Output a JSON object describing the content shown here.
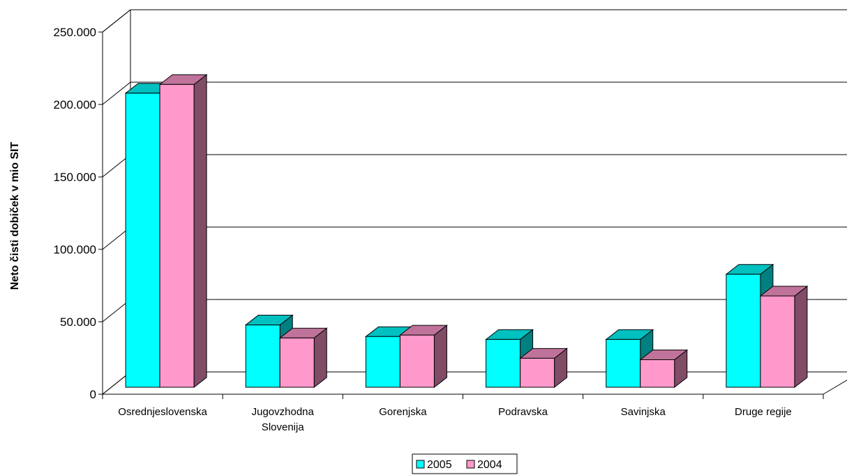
{
  "chart_data": {
    "type": "bar",
    "title": "",
    "xlabel": "",
    "ylabel": "Neto čisti dobiček v mio SIT",
    "ylim": [
      0,
      250000
    ],
    "yticks": [
      0,
      50000,
      100000,
      150000,
      200000,
      250000
    ],
    "ytick_labels": [
      "0",
      "50.000",
      "100.000",
      "150.000",
      "200.000",
      "250.000"
    ],
    "categories": [
      [
        "Osrednjeslovenska"
      ],
      [
        "Jugovzhodna",
        "Slovenija"
      ],
      [
        "Gorenjska"
      ],
      [
        "Podravska"
      ],
      [
        "Savinjska"
      ],
      [
        "Druge regije"
      ]
    ],
    "series": [
      {
        "name": "2005",
        "values": [
          203000,
          43000,
          35000,
          33000,
          33000,
          78000
        ],
        "color": "#00ffff",
        "side_color": "#008080",
        "top_color": "#00c0c0"
      },
      {
        "name": "2004",
        "values": [
          209000,
          34000,
          36000,
          20000,
          19000,
          63000
        ],
        "color": "#ff99cc",
        "side_color": "#804c66",
        "top_color": "#c0739a"
      }
    ],
    "grid": true,
    "legend_position": "bottom",
    "style": "3d-clustered"
  }
}
